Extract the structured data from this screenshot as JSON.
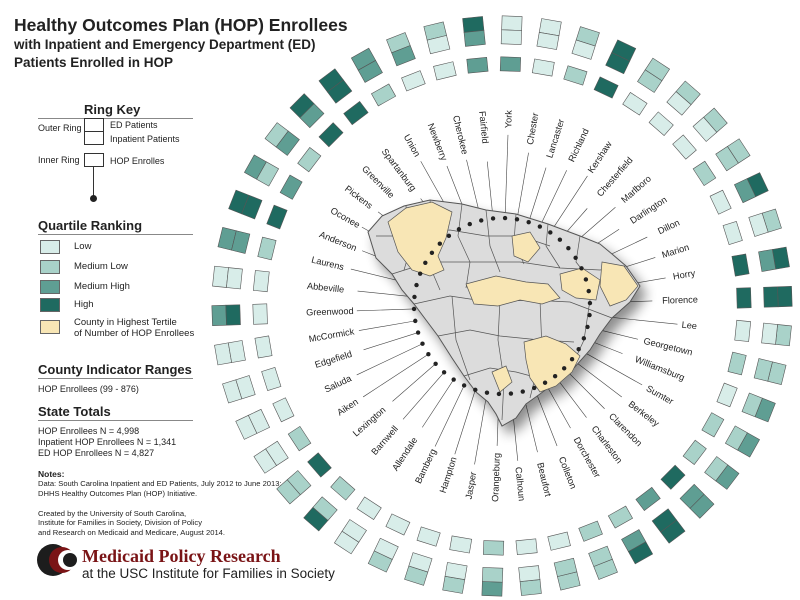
{
  "title": {
    "line1": "Healthy Outcomes Plan (HOP) Enrollees",
    "line2": "with Inpatient and Emergency Department (ED)",
    "line3": "Patients Enrolled in HOP"
  },
  "ring_key": {
    "heading": "Ring Key",
    "outer_ring_label": "Outer Ring",
    "inner_ring_label": "Inner Ring",
    "ed_patients": "ED Patients",
    "inpatient_patients": "Inpatient Patients",
    "hop_enrollees": "HOP Enrolles"
  },
  "quartile": {
    "heading": "Quartile Ranking",
    "items": [
      {
        "label": "Low",
        "color": "#d8ede9"
      },
      {
        "label": "Medium Low",
        "color": "#a9d2c9"
      },
      {
        "label": "Medium High",
        "color": "#5f9e93"
      },
      {
        "label": "High",
        "color": "#1f6a60"
      },
      {
        "label": "County in Highest Tertile\nof Number of HOP Enrollees",
        "color": "#f8e6b5"
      }
    ]
  },
  "indicator": {
    "heading": "County Indicator Ranges",
    "hop_range": "HOP Enrollees (99 - 876)"
  },
  "state_totals": {
    "heading": "State Totals",
    "lines": [
      "HOP Enrollees N = 4,998",
      "Inpatient HOP Enrollees N = 1,341",
      "ED HOP Enrollees N = 4,827"
    ]
  },
  "notes": {
    "heading": "Notes:",
    "line1": "Data:  South Carolina Inpatient and ED Patients, July 2012 to June 2013;",
    "line2": "DHHS Healthy Outcomes Plan (HOP) Initiative."
  },
  "credit": {
    "line1": "Created by the University of South Carolina,",
    "line2": "Institute for Families in Society, Division of Policy",
    "line3": "and Research on Medicaid and Medicare, August 2014."
  },
  "logo": {
    "line1": "Medicaid Policy Research",
    "line2": "at the USC Institute for Families in Society"
  },
  "colors": {
    "low": "#d8ede9",
    "medium_low": "#a9d2c9",
    "medium_high": "#5f9e93",
    "high": "#1f6a60",
    "highlight": "#f8e6b5",
    "map_gray": "#dcdcdc",
    "map_stroke": "#555555"
  },
  "counties": [
    {
      "name": "York",
      "ed": 1,
      "inp": 1,
      "hop": 3,
      "hl": true
    },
    {
      "name": "Chester",
      "ed": 1,
      "inp": 1,
      "hop": 1,
      "hl": false
    },
    {
      "name": "Lancaster",
      "ed": 2,
      "inp": 1,
      "hop": 2,
      "hl": false
    },
    {
      "name": "Richland",
      "ed": 4,
      "inp": 4,
      "hop": 4,
      "hl": true
    },
    {
      "name": "Kershaw",
      "ed": 2,
      "inp": 2,
      "hop": 1,
      "hl": false
    },
    {
      "name": "Chesterfield",
      "ed": 2,
      "inp": 1,
      "hop": 1,
      "hl": false
    },
    {
      "name": "Marlboro",
      "ed": 2,
      "inp": 1,
      "hop": 1,
      "hl": false
    },
    {
      "name": "Darlington",
      "ed": 2,
      "inp": 2,
      "hop": 2,
      "hl": false
    },
    {
      "name": "Dillon",
      "ed": 4,
      "inp": 3,
      "hop": 1,
      "hl": false
    },
    {
      "name": "Marion",
      "ed": 2,
      "inp": 1,
      "hop": 1,
      "hl": false
    },
    {
      "name": "Horry",
      "ed": 4,
      "inp": 3,
      "hop": 4,
      "hl": true
    },
    {
      "name": "Florence",
      "ed": 4,
      "inp": 4,
      "hop": 4,
      "hl": true
    },
    {
      "name": "Lee",
      "ed": 2,
      "inp": 1,
      "hop": 1,
      "hl": false
    },
    {
      "name": "Georgetown",
      "ed": 2,
      "inp": 2,
      "hop": 2,
      "hl": false
    },
    {
      "name": "Williamsburg",
      "ed": 3,
      "inp": 2,
      "hop": 1,
      "hl": false
    },
    {
      "name": "Sumter",
      "ed": 3,
      "inp": 2,
      "hop": 2,
      "hl": true
    },
    {
      "name": "Berkeley",
      "ed": 3,
      "inp": 2,
      "hop": 2,
      "hl": true
    },
    {
      "name": "Clarendon",
      "ed": 3,
      "inp": 3,
      "hop": 4,
      "hl": false
    },
    {
      "name": "Charleston",
      "ed": 4,
      "inp": 4,
      "hop": 3,
      "hl": true
    },
    {
      "name": "Dorchester",
      "ed": 4,
      "inp": 3,
      "hop": 2,
      "hl": true
    },
    {
      "name": "Colleton",
      "ed": 2,
      "inp": 2,
      "hop": 2,
      "hl": false
    },
    {
      "name": "Beaufort",
      "ed": 2,
      "inp": 2,
      "hop": 1,
      "hl": true
    },
    {
      "name": "Calhoun",
      "ed": 2,
      "inp": 1,
      "hop": 1,
      "hl": false
    },
    {
      "name": "Orangeburg",
      "ed": 3,
      "inp": 2,
      "hop": 2,
      "hl": true
    },
    {
      "name": "Jasper",
      "ed": 2,
      "inp": 1,
      "hop": 1,
      "hl": false
    },
    {
      "name": "Hampton",
      "ed": 2,
      "inp": 1,
      "hop": 1,
      "hl": false
    },
    {
      "name": "Bamberg",
      "ed": 2,
      "inp": 1,
      "hop": 1,
      "hl": false
    },
    {
      "name": "Allendale",
      "ed": 1,
      "inp": 1,
      "hop": 1,
      "hl": false
    },
    {
      "name": "Barnwell",
      "ed": 4,
      "inp": 2,
      "hop": 2,
      "hl": false
    },
    {
      "name": "Lexington",
      "ed": 2,
      "inp": 2,
      "hop": 4,
      "hl": true
    },
    {
      "name": "Aiken",
      "ed": 1,
      "inp": 1,
      "hop": 2,
      "hl": true
    },
    {
      "name": "Saluda",
      "ed": 1,
      "inp": 1,
      "hop": 1,
      "hl": false
    },
    {
      "name": "Edgefield",
      "ed": 1,
      "inp": 1,
      "hop": 1,
      "hl": false
    },
    {
      "name": "McCormick",
      "ed": 1,
      "inp": 1,
      "hop": 1,
      "hl": false
    },
    {
      "name": "Greenwood",
      "ed": 3,
      "inp": 4,
      "hop": 1,
      "hl": false
    },
    {
      "name": "Abbeville",
      "ed": 1,
      "inp": 1,
      "hop": 1,
      "hl": false
    },
    {
      "name": "Laurens",
      "ed": 3,
      "inp": 3,
      "hop": 2,
      "hl": false
    },
    {
      "name": "Anderson",
      "ed": 4,
      "inp": 4,
      "hop": 4,
      "hl": true
    },
    {
      "name": "Oconee",
      "ed": 3,
      "inp": 2,
      "hop": 3,
      "hl": false
    },
    {
      "name": "Pickens",
      "ed": 2,
      "inp": 3,
      "hop": 2,
      "hl": true
    },
    {
      "name": "Greenville",
      "ed": 4,
      "inp": 3,
      "hop": 4,
      "hl": true
    },
    {
      "name": "Spartanburg",
      "ed": 4,
      "inp": 4,
      "hop": 4,
      "hl": true
    },
    {
      "name": "Union",
      "ed": 3,
      "inp": 3,
      "hop": 2,
      "hl": false
    },
    {
      "name": "Newberry",
      "ed": 2,
      "inp": 3,
      "hop": 1,
      "hl": false
    },
    {
      "name": "Cherokee",
      "ed": 2,
      "inp": 1,
      "hop": 1,
      "hl": false
    },
    {
      "name": "Fairfield",
      "ed": 4,
      "inp": 3,
      "hop": 3,
      "hl": false
    }
  ]
}
